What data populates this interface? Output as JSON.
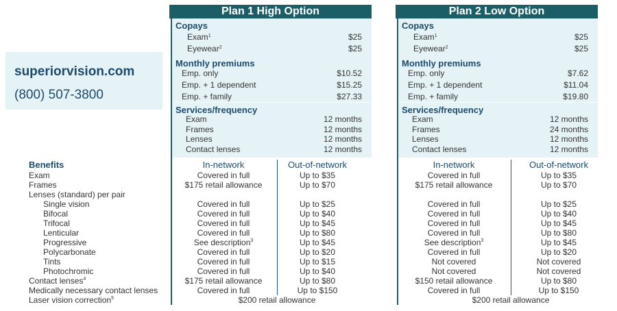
{
  "contact": {
    "website": "superiorvision.com",
    "phone": "(800) 507-3800"
  },
  "plans": [
    {
      "title": "Plan 1 High Option",
      "copays_title": "Copays",
      "copays": [
        {
          "label": "Exam",
          "sup": "1",
          "value": "$25"
        },
        {
          "label": "Eyewear",
          "sup": "2",
          "value": "$25"
        }
      ],
      "premiums_title": "Monthly premiums",
      "premiums": [
        {
          "label": "Emp. only",
          "value": "$10.52"
        },
        {
          "label": "Emp. + 1 dependent",
          "value": "$15.25"
        },
        {
          "label": "Emp. + family",
          "value": "$27.33"
        }
      ],
      "services_title": "Services/frequency",
      "services": [
        {
          "label": "Exam",
          "value": "12 months"
        },
        {
          "label": "Frames",
          "value": "12 months"
        },
        {
          "label": "Lenses",
          "value": "12 months"
        },
        {
          "label": "Contact lenses",
          "value": "12 months"
        }
      ]
    },
    {
      "title": "Plan 2 Low Option",
      "copays_title": "Copays",
      "copays": [
        {
          "label": "Exam",
          "sup": "1",
          "value": "$25"
        },
        {
          "label": "Eyewear",
          "sup": "2",
          "value": "$25"
        }
      ],
      "premiums_title": "Monthly premiums",
      "premiums": [
        {
          "label": "Emp. only",
          "value": "$7.62"
        },
        {
          "label": "Emp. + 1 dependent",
          "value": "$11.04"
        },
        {
          "label": "Emp. + family",
          "value": "$19.80"
        }
      ],
      "services_title": "Services/frequency",
      "services": [
        {
          "label": "Exam",
          "value": "12 months"
        },
        {
          "label": "Frames",
          "value": "24 months"
        },
        {
          "label": "Lenses",
          "value": "12 months"
        },
        {
          "label": "Contact lenses",
          "value": "12 months"
        }
      ]
    }
  ],
  "benefits": {
    "title": "Benefits",
    "in_network": "In-network",
    "out_network": "Out-of-network",
    "rows": [
      {
        "label": "Exam",
        "sup": "",
        "indent": false,
        "p1": [
          "Covered in full",
          "Up to $35"
        ],
        "p2": [
          "Covered in full",
          "Up to $35"
        ]
      },
      {
        "label": "Frames",
        "sup": "",
        "indent": false,
        "p1": [
          "$175 retail allowance",
          "Up to $70"
        ],
        "p2": [
          "$175 retail allowance",
          "Up to $70"
        ]
      },
      {
        "label": "Lenses (standard) per pair",
        "sup": "",
        "indent": false,
        "p1": null,
        "p2": null
      },
      {
        "label": "Single vision",
        "sup": "",
        "indent": true,
        "p1": [
          "Covered in full",
          "Up to $25"
        ],
        "p2": [
          "Covered in full",
          "Up to $25"
        ]
      },
      {
        "label": "Bifocal",
        "sup": "",
        "indent": true,
        "p1": [
          "Covered in full",
          "Up to $40"
        ],
        "p2": [
          "Covered in full",
          "Up to $40"
        ]
      },
      {
        "label": "Trifocal",
        "sup": "",
        "indent": true,
        "p1": [
          "Covered in full",
          "Up to $45"
        ],
        "p2": [
          "Covered in full",
          "Up to $45"
        ]
      },
      {
        "label": "Lenticular",
        "sup": "",
        "indent": true,
        "p1": [
          "Covered in full",
          "Up to $80"
        ],
        "p2": [
          "Covered in full",
          "Up to $80"
        ]
      },
      {
        "label": "Progressive",
        "sup": "",
        "indent": true,
        "p1": [
          "See description",
          "Up to $45"
        ],
        "p1sup": "3",
        "p2": [
          "See description",
          "Up to $45"
        ],
        "p2sup": "3"
      },
      {
        "label": "Polycarbonate",
        "sup": "",
        "indent": true,
        "p1": [
          "Covered in full",
          "Up to $20"
        ],
        "p2": [
          "Covered in full",
          "Up to $20"
        ]
      },
      {
        "label": "Tints",
        "sup": "",
        "indent": true,
        "p1": [
          "Covered in full",
          "Up to $15"
        ],
        "p2": [
          "Not covered",
          "Not covered"
        ]
      },
      {
        "label": "Photochromic",
        "sup": "",
        "indent": true,
        "p1": [
          "Covered in full",
          "Up to $40"
        ],
        "p2": [
          "Not covered",
          "Not covered"
        ]
      },
      {
        "label": "Contact lenses",
        "sup": "4",
        "indent": false,
        "p1": [
          "$175 retail allowance",
          "Up to $80"
        ],
        "p2": [
          "$150 retail allowance",
          "Up to $80"
        ]
      },
      {
        "label": "Medically necessary contact lenses",
        "sup": "",
        "indent": false,
        "p1": [
          "Covered in full",
          "Up to $150"
        ],
        "p2": [
          "Covered in full",
          "Up to $150"
        ]
      },
      {
        "label": "Laser vision correction",
        "sup": "5",
        "indent": false,
        "p1span": "$200 retail allowance",
        "p2span": "$200 retail allowance"
      }
    ]
  },
  "colors": {
    "header_bg": "#1b5e67",
    "panel_bg": "#e6f3f6",
    "title_text": "#1b4a6b"
  }
}
